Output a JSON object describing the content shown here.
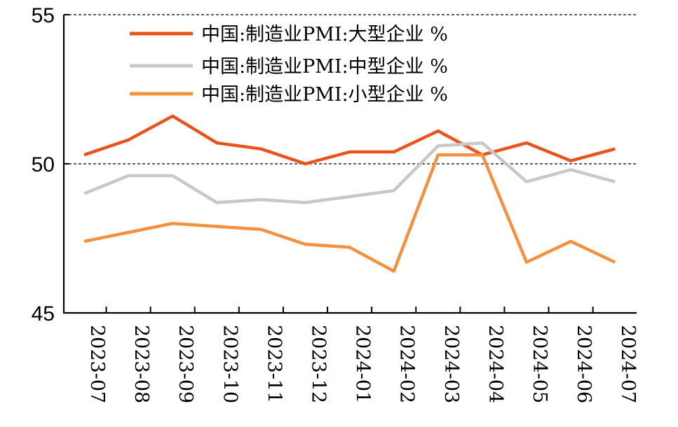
{
  "chart_data": {
    "type": "line",
    "title": "",
    "xlabel": "",
    "ylabel": "",
    "categories": [
      "2023-07",
      "2023-08",
      "2023-09",
      "2023-10",
      "2023-11",
      "2023-12",
      "2024-01",
      "2024-02",
      "2024-03",
      "2024-04",
      "2024-05",
      "2024-06",
      "2024-07"
    ],
    "ylim": [
      45,
      55
    ],
    "yticks": [
      "45",
      "50",
      "55"
    ],
    "reference_lines": [
      50,
      55
    ],
    "legend_position": "top",
    "series": [
      {
        "name": "中国:制造业PMI:大型企业 %",
        "color": "#e8541e",
        "values": [
          50.3,
          50.8,
          51.6,
          50.7,
          50.5,
          50.0,
          50.4,
          50.4,
          51.1,
          50.3,
          50.7,
          50.1,
          50.5
        ]
      },
      {
        "name": "中国:制造业PMI:中型企业 %",
        "color": "#c8c8c8",
        "values": [
          49.0,
          49.6,
          49.6,
          48.7,
          48.8,
          48.7,
          48.9,
          49.1,
          50.6,
          50.7,
          49.4,
          49.8,
          49.4
        ]
      },
      {
        "name": "中国:制造业PMI:小型企业 %",
        "color": "#f3913e",
        "values": [
          47.4,
          47.7,
          48.0,
          47.9,
          47.8,
          47.3,
          47.2,
          46.4,
          50.3,
          50.3,
          46.7,
          47.4,
          46.7
        ]
      }
    ]
  }
}
